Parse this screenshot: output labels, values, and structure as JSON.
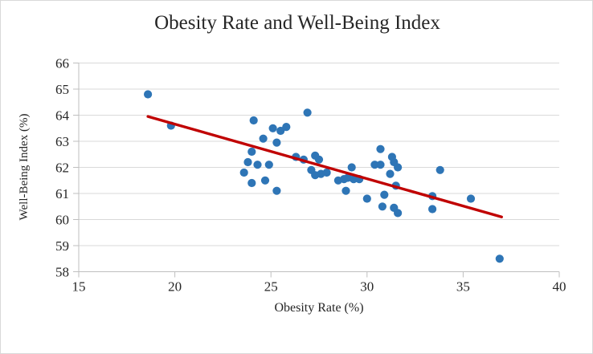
{
  "chart_data": {
    "type": "scatter",
    "title": "Obesity Rate and Well-Being Index",
    "xlabel": "Obesity Rate (%)",
    "ylabel": "Well-Being Index (%)",
    "xlim": [
      15,
      40
    ],
    "ylim": [
      58,
      66
    ],
    "x_ticks": [
      15,
      20,
      25,
      30,
      35,
      40
    ],
    "y_ticks": [
      58,
      59,
      60,
      61,
      62,
      63,
      64,
      65,
      66
    ],
    "grid": "horizontal-only",
    "legend": "none",
    "series": [
      {
        "name": "scatter-points",
        "points": [
          [
            18.6,
            64.8
          ],
          [
            19.8,
            63.6
          ],
          [
            24.1,
            63.8
          ],
          [
            26.9,
            64.1
          ],
          [
            25.1,
            63.5
          ],
          [
            25.5,
            63.4
          ],
          [
            25.8,
            63.55
          ],
          [
            24.6,
            63.1
          ],
          [
            25.3,
            62.95
          ],
          [
            24.0,
            62.6
          ],
          [
            23.8,
            62.2
          ],
          [
            24.3,
            62.1
          ],
          [
            24.9,
            62.1
          ],
          [
            23.6,
            61.8
          ],
          [
            24.0,
            61.4
          ],
          [
            24.7,
            61.5
          ],
          [
            25.3,
            61.1
          ],
          [
            26.3,
            62.4
          ],
          [
            26.7,
            62.3
          ],
          [
            27.3,
            62.45
          ],
          [
            27.5,
            62.3
          ],
          [
            27.1,
            61.9
          ],
          [
            27.3,
            61.7
          ],
          [
            27.6,
            61.75
          ],
          [
            27.9,
            61.8
          ],
          [
            28.5,
            61.5
          ],
          [
            28.8,
            61.55
          ],
          [
            29.0,
            61.6
          ],
          [
            29.3,
            61.55
          ],
          [
            29.6,
            61.55
          ],
          [
            29.2,
            62.0
          ],
          [
            28.9,
            61.1
          ],
          [
            30.0,
            60.8
          ],
          [
            30.7,
            62.7
          ],
          [
            30.4,
            62.1
          ],
          [
            30.7,
            62.1
          ],
          [
            31.3,
            62.4
          ],
          [
            31.4,
            62.2
          ],
          [
            31.6,
            62.0
          ],
          [
            31.2,
            61.75
          ],
          [
            31.5,
            61.3
          ],
          [
            30.9,
            60.95
          ],
          [
            30.8,
            60.5
          ],
          [
            31.4,
            60.45
          ],
          [
            31.6,
            60.25
          ],
          [
            33.4,
            60.9
          ],
          [
            33.4,
            60.4
          ],
          [
            33.8,
            61.9
          ],
          [
            35.4,
            60.8
          ],
          [
            36.9,
            58.5
          ]
        ]
      }
    ],
    "trendline": {
      "type": "linear",
      "x_start": 18.6,
      "y_start": 63.95,
      "x_end": 37.0,
      "y_end": 60.1
    },
    "colors": {
      "marker": "#2E75B6",
      "trendline": "#C00000",
      "gridline": "#D9D9D9",
      "axis": "#BFBFBF",
      "text": "#262626",
      "border": "#D9D9D9",
      "background": "#FFFFFF"
    }
  }
}
